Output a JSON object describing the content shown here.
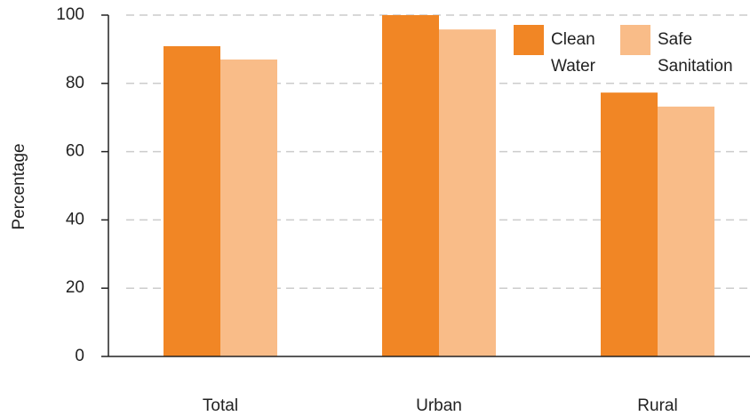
{
  "chart_data": {
    "type": "bar",
    "y_label": "Percentage",
    "categories": [
      "Total",
      "Urban",
      "Rural"
    ],
    "series": [
      {
        "name": "Clean Water",
        "color": "#f18625",
        "values": [
          90.9,
          100,
          77.3
        ]
      },
      {
        "name": "Safe Sanitation",
        "color": "#f9bc88",
        "values": [
          87,
          95.8,
          73.2
        ]
      }
    ],
    "ylim": [
      0,
      100
    ],
    "yticks": [
      0,
      20,
      40,
      60,
      80,
      100
    ],
    "grid": true,
    "legend": "upper right"
  }
}
